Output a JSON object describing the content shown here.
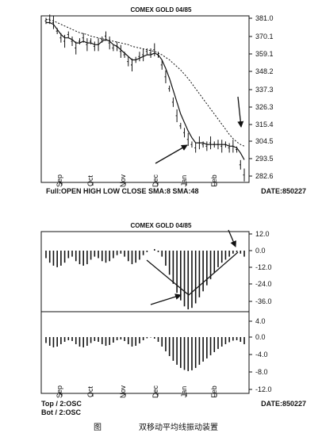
{
  "caption": {
    "label": "图",
    "text": "双移动平均线振动装置"
  },
  "chart_data": [
    {
      "type": "line",
      "subtype": "ohlc-price-with-moving-averages",
      "title": "COMEX GOLD 04/85",
      "months": [
        "Sep",
        "Oct",
        "Nov",
        "Dec",
        "Jan",
        "Feb"
      ],
      "y_ticks": [
        381.0,
        370.1,
        359.1,
        348.2,
        337.3,
        326.3,
        315.4,
        304.5,
        293.5,
        282.6
      ],
      "ylim": [
        282.6,
        381.0
      ],
      "footer_left": "Full:OPEN HIGH LOW CLOSE SMA:8 SMA:48",
      "footer_right": "DATE:850227",
      "series": [
        {
          "style": "bars",
          "values": [
            378,
            379,
            377,
            372,
            368,
            366,
            370,
            366,
            362,
            366,
            368,
            364,
            366,
            363,
            364,
            367,
            369,
            365,
            362,
            363,
            360,
            358,
            354,
            352,
            355,
            357,
            358,
            360,
            359,
            361,
            358,
            352,
            345,
            338,
            330,
            322,
            316,
            312,
            308,
            305,
            303,
            306,
            305,
            304,
            306,
            305,
            305,
            304,
            305,
            303,
            304,
            302,
            293,
            287
          ]
        },
        {
          "style": "solid",
          "values": [
            377,
            377,
            376,
            373,
            370,
            368,
            368,
            367,
            365,
            365,
            366,
            365,
            365,
            364,
            364,
            366,
            367,
            366,
            364,
            363,
            361,
            359,
            357,
            355,
            355,
            356,
            357,
            358,
            358,
            359,
            358,
            355,
            350,
            344,
            337,
            330,
            323,
            318,
            313,
            309,
            306,
            306,
            306,
            305,
            305,
            305,
            305,
            305,
            305,
            304,
            304,
            303,
            300,
            296
          ]
        },
        {
          "style": "dashed",
          "values": [
            379,
            378.5,
            378,
            377,
            376,
            375,
            374,
            373,
            372,
            371,
            370.5,
            370,
            369,
            368.5,
            368,
            367.5,
            367,
            366.5,
            366,
            365.5,
            365,
            364.5,
            364,
            363,
            362.5,
            362,
            361.5,
            361,
            360.5,
            360,
            359,
            358,
            356.5,
            355,
            353,
            351,
            349,
            346.5,
            344,
            341,
            338,
            335,
            332,
            329,
            326,
            323,
            320,
            317,
            314,
            311,
            308.5,
            306.5,
            305,
            304
          ]
        }
      ],
      "annotations": [
        "arrow at Jan low",
        "down arrow at late Feb"
      ]
    },
    {
      "type": "bar",
      "subtype": "oscillator-histogram",
      "title": "COMEX GOLD 04/85",
      "months": [
        "Sep",
        "Oct",
        "Nov",
        "Dec",
        "Jan",
        "Feb"
      ],
      "top": {
        "y_ticks": [
          12.0,
          0.0,
          -12.0,
          -24.0,
          -36.0
        ],
        "ylim": [
          -42,
          12
        ],
        "values": [
          -5,
          -8,
          -10,
          -11,
          -10,
          -8,
          -5,
          -4,
          -7,
          -9,
          -10,
          -9,
          -6,
          -4,
          -5,
          -7,
          -8,
          -7,
          -5,
          -3,
          -2,
          -4,
          -7,
          -9,
          -8,
          -6,
          -3,
          -1,
          0,
          1,
          -1,
          -4,
          -10,
          -16,
          -22,
          -28,
          -33,
          -37,
          -39,
          -38,
          -35,
          -31,
          -27,
          -23,
          -19,
          -15,
          -11,
          -8,
          -6,
          -4,
          -2,
          -1,
          -2,
          -4
        ]
      },
      "bottom": {
        "y_ticks": [
          4.0,
          0.0,
          -4.0,
          -8.0,
          -12.0
        ],
        "ylim": [
          -12,
          4
        ],
        "values": [
          -1.5,
          -2.2,
          -2.6,
          -2.4,
          -1.8,
          -1.2,
          -0.8,
          -1.0,
          -1.8,
          -2.4,
          -2.6,
          -2.2,
          -1.5,
          -1.0,
          -1.2,
          -1.8,
          -2.2,
          -2.0,
          -1.4,
          -0.8,
          -0.6,
          -1.0,
          -1.8,
          -2.4,
          -2.2,
          -1.6,
          -0.8,
          -0.3,
          -0.1,
          -0.4,
          -1.2,
          -2.4,
          -3.6,
          -4.8,
          -6.0,
          -7.0,
          -7.8,
          -8.3,
          -8.6,
          -8.4,
          -7.8,
          -7.0,
          -6.2,
          -5.4,
          -4.6,
          -3.8,
          -3.0,
          -2.4,
          -1.8,
          -1.3,
          -0.9,
          -0.8,
          -1.2,
          -1.8
        ]
      },
      "footer_left_top": "Top / 2:OSC",
      "footer_left_bottom": "Bot / 2:OSC",
      "footer_right": "DATE:850227",
      "annotations": [
        "V-shaped lines at Jan trough",
        "arrow at Jan trough",
        "down arrow at late Feb"
      ]
    }
  ]
}
